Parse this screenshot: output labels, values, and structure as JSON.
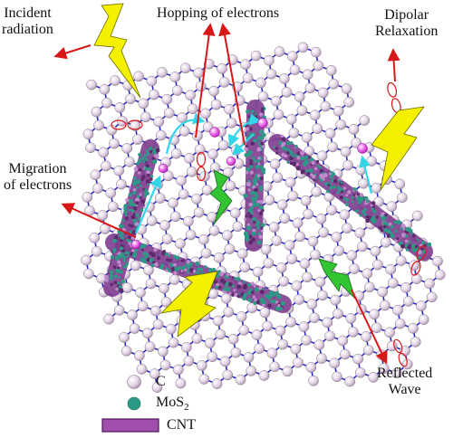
{
  "labels": {
    "incident": [
      "Incident",
      "radiation"
    ],
    "hopping": "Hopping of electrons",
    "dipolar": [
      "Dipolar",
      "Relaxation"
    ],
    "migration": [
      "Migration",
      "of electrons"
    ],
    "reflected": [
      "Reflected",
      "Wave"
    ]
  },
  "legend": {
    "carbon": "C",
    "mos2_main": "MoS",
    "mos2_sub": "2",
    "cnt": "CNT"
  },
  "colors": {
    "lattice_bond": "#2626c8",
    "carbon_atom": "#d9c8dc",
    "mos2_particle": "#2a9a86",
    "cnt_tube": "#7e3d8e",
    "arrow_red": "#d81818",
    "arrow_cyan": "#33d6e6",
    "lightning_yellow": "#f4f000",
    "lightning_green": "#33c433",
    "electron_magenta": "#ee55ee"
  }
}
